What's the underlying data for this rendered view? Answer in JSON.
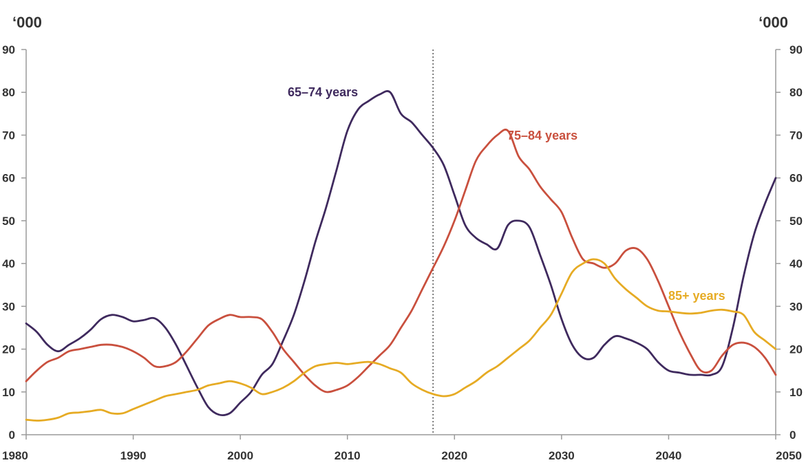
{
  "chart_data": {
    "type": "line",
    "title": "",
    "left_unit": "‘000",
    "right_unit": "‘000",
    "ylim": [
      0,
      90
    ],
    "yticks": [
      0,
      10,
      20,
      30,
      40,
      50,
      60,
      70,
      80,
      90
    ],
    "yticks_right": [
      0,
      10,
      20,
      30,
      40,
      50,
      60,
      70,
      80,
      90
    ],
    "xlim": [
      1980,
      2050
    ],
    "xticks": [
      1980,
      1990,
      2000,
      2010,
      2020,
      2030,
      2040,
      2050
    ],
    "reference_line_x": 2018,
    "grid": false,
    "series": [
      {
        "name": "65–74 years",
        "color": "#3f2a5e",
        "x": [
          1980,
          1981,
          1982,
          1983,
          1984,
          1985,
          1986,
          1987,
          1988,
          1989,
          1990,
          1991,
          1992,
          1993,
          1994,
          1995,
          1996,
          1997,
          1998,
          1999,
          2000,
          2001,
          2002,
          2003,
          2004,
          2005,
          2006,
          2007,
          2008,
          2009,
          2010,
          2011,
          2012,
          2013,
          2014,
          2015,
          2016,
          2017,
          2018,
          2019,
          2020,
          2021,
          2022,
          2023,
          2024,
          2025,
          2026,
          2027,
          2028,
          2029,
          2030,
          2031,
          2032,
          2033,
          2034,
          2035,
          2036,
          2037,
          2038,
          2039,
          2040,
          2041,
          2042,
          2043,
          2044,
          2045,
          2046,
          2047,
          2048,
          2049,
          2050
        ],
        "values": [
          26,
          24,
          21,
          19.5,
          21,
          22.5,
          24.5,
          27,
          28,
          27.5,
          26.5,
          26.8,
          27.2,
          25,
          21,
          16,
          11,
          6.5,
          4.7,
          5,
          7.5,
          10,
          14,
          16.5,
          22,
          28,
          36,
          45,
          53,
          62,
          71,
          76,
          78,
          79.5,
          80,
          75,
          73,
          70,
          67,
          63,
          56,
          49,
          46,
          44.5,
          43.5,
          49,
          50,
          48.5,
          42,
          35,
          27,
          21,
          18,
          18,
          21,
          23,
          22.5,
          21.5,
          20,
          17,
          15,
          14.5,
          14,
          14,
          14,
          16,
          25,
          37,
          47,
          54,
          60
        ]
      },
      {
        "name": "75–84 years",
        "color": "#c9503e",
        "x": [
          1980,
          1981,
          1982,
          1983,
          1984,
          1985,
          1986,
          1987,
          1988,
          1989,
          1990,
          1991,
          1992,
          1993,
          1994,
          1995,
          1996,
          1997,
          1998,
          1999,
          2000,
          2001,
          2002,
          2003,
          2004,
          2005,
          2006,
          2007,
          2008,
          2009,
          2010,
          2011,
          2012,
          2013,
          2014,
          2015,
          2016,
          2017,
          2018,
          2019,
          2020,
          2021,
          2022,
          2023,
          2024,
          2025,
          2026,
          2027,
          2028,
          2029,
          2030,
          2031,
          2032,
          2033,
          2034,
          2035,
          2036,
          2037,
          2038,
          2039,
          2040,
          2041,
          2042,
          2043,
          2044,
          2045,
          2046,
          2047,
          2048,
          2049,
          2050
        ],
        "values": [
          12.5,
          15,
          17,
          18,
          19.5,
          20,
          20.5,
          21,
          21,
          20.5,
          19.5,
          18,
          16,
          16,
          17,
          19.5,
          22.5,
          25.5,
          27,
          28,
          27.5,
          27.5,
          27,
          24,
          20,
          17,
          14,
          11.5,
          10,
          10.5,
          11.5,
          13.5,
          16,
          18.5,
          21,
          25,
          29,
          34,
          39,
          44,
          50,
          57,
          64,
          67.5,
          70,
          71,
          65,
          62,
          58,
          55,
          52,
          46,
          41,
          40,
          39,
          40,
          43,
          43.5,
          41,
          36,
          30,
          24,
          19,
          15,
          15,
          18.5,
          21,
          21.5,
          20.5,
          18,
          14
        ]
      },
      {
        "name": "85+ years",
        "color": "#e6ab24",
        "x": [
          1980,
          1981,
          1982,
          1983,
          1984,
          1985,
          1986,
          1987,
          1988,
          1989,
          1990,
          1991,
          1992,
          1993,
          1994,
          1995,
          1996,
          1997,
          1998,
          1999,
          2000,
          2001,
          2002,
          2003,
          2004,
          2005,
          2006,
          2007,
          2008,
          2009,
          2010,
          2011,
          2012,
          2013,
          2014,
          2015,
          2016,
          2017,
          2018,
          2019,
          2020,
          2021,
          2022,
          2023,
          2024,
          2025,
          2026,
          2027,
          2028,
          2029,
          2030,
          2031,
          2032,
          2033,
          2034,
          2035,
          2036,
          2037,
          2038,
          2039,
          2040,
          2041,
          2042,
          2043,
          2044,
          2045,
          2046,
          2047,
          2048,
          2049,
          2050
        ],
        "values": [
          3.5,
          3.3,
          3.5,
          4,
          5,
          5.2,
          5.5,
          5.8,
          5,
          5,
          6,
          7,
          8,
          9,
          9.5,
          10,
          10.5,
          11.5,
          12,
          12.5,
          12,
          11,
          9.5,
          10,
          11,
          12.5,
          14.5,
          16,
          16.5,
          16.8,
          16.5,
          16.8,
          17,
          16.5,
          15.5,
          14.5,
          12,
          10.5,
          9.5,
          9,
          9.5,
          11,
          12.5,
          14.5,
          16,
          18,
          20,
          22,
          25,
          28,
          33,
          38,
          40,
          41,
          40,
          36.5,
          34,
          32,
          30,
          29,
          28.8,
          28.5,
          28.3,
          28.5,
          29,
          29.2,
          28.8,
          28,
          24,
          22,
          20
        ]
      }
    ]
  }
}
